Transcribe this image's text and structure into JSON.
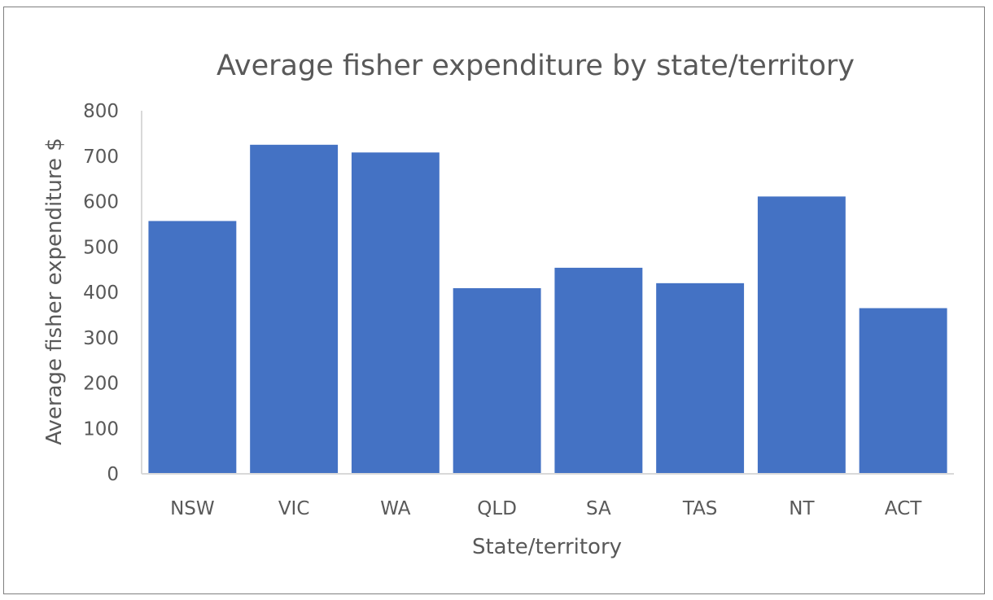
{
  "chart_data": {
    "type": "bar",
    "title": "Average fisher expenditure by state/territory",
    "xlabel": "State/territory",
    "ylabel": "Average fisher expenditure $",
    "categories": [
      "NSW",
      "VIC",
      "WA",
      "QLD",
      "SA",
      "TAS",
      "NT",
      "ACT"
    ],
    "values": [
      557,
      725,
      708,
      409,
      454,
      420,
      611,
      365
    ],
    "ylim": [
      0,
      800
    ],
    "yticks": [
      "0",
      "100",
      "200",
      "300",
      "400",
      "500",
      "600",
      "700",
      "800"
    ],
    "grid": false,
    "legend": "none",
    "bar_color": "#4472C4",
    "axis_color": "#D9D9D9"
  }
}
